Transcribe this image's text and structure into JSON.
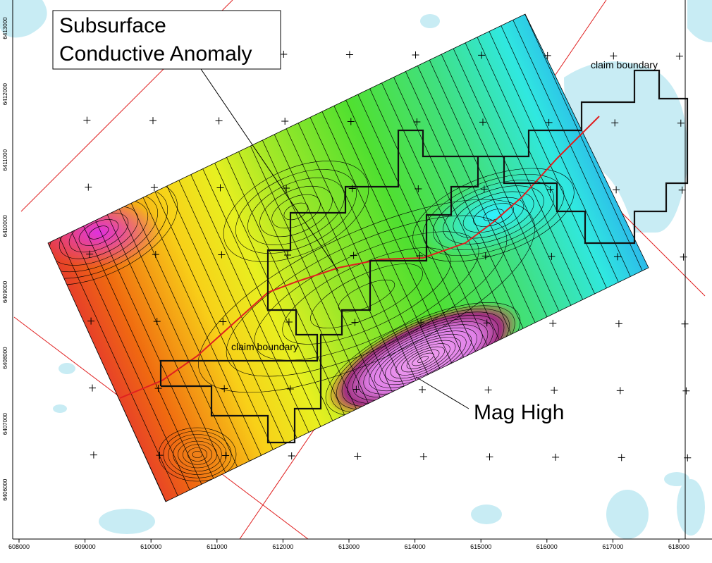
{
  "callouts": {
    "anomaly": {
      "line1": "Subsurface",
      "line2": "Conductive Anomaly"
    },
    "mag_high": "Mag High"
  },
  "claim_labels": [
    "claim boundary",
    "claim boundary"
  ],
  "easting_ticks": [
    "608000",
    "609000",
    "610000",
    "611000",
    "612000",
    "613000",
    "614000",
    "615000",
    "616000",
    "617000",
    "618000"
  ],
  "northing_ticks": [
    "6413000",
    "6412000",
    "6411000",
    "6410000",
    "6409000",
    "6408000",
    "6407000",
    "6406000"
  ]
}
